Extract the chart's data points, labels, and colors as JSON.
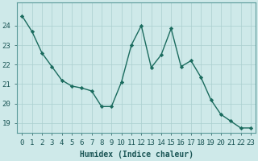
{
  "x": [
    0,
    1,
    2,
    3,
    4,
    5,
    6,
    7,
    8,
    9,
    10,
    11,
    12,
    13,
    14,
    15,
    16,
    17,
    18,
    19,
    20,
    21,
    22,
    23
  ],
  "y": [
    24.5,
    23.7,
    22.6,
    21.9,
    21.2,
    20.9,
    20.8,
    20.65,
    19.85,
    19.85,
    21.1,
    23.0,
    24.0,
    21.85,
    22.5,
    23.85,
    21.9,
    22.2,
    21.35,
    20.2,
    19.45,
    19.1,
    18.75,
    18.75
  ],
  "line_color": "#1a6b5e",
  "marker": "D",
  "marker_size": 2.2,
  "background_color": "#cee9e9",
  "grid_color": "#aacfcf",
  "xlabel": "Humidex (Indice chaleur)",
  "ylim": [
    18.5,
    25.2
  ],
  "xlim": [
    -0.5,
    23.5
  ],
  "yticks": [
    19,
    20,
    21,
    22,
    23,
    24
  ],
  "xticks": [
    0,
    1,
    2,
    3,
    4,
    5,
    6,
    7,
    8,
    9,
    10,
    11,
    12,
    13,
    14,
    15,
    16,
    17,
    18,
    19,
    20,
    21,
    22,
    23
  ],
  "xlabel_fontsize": 7,
  "tick_fontsize": 6.5,
  "line_width": 1.0
}
